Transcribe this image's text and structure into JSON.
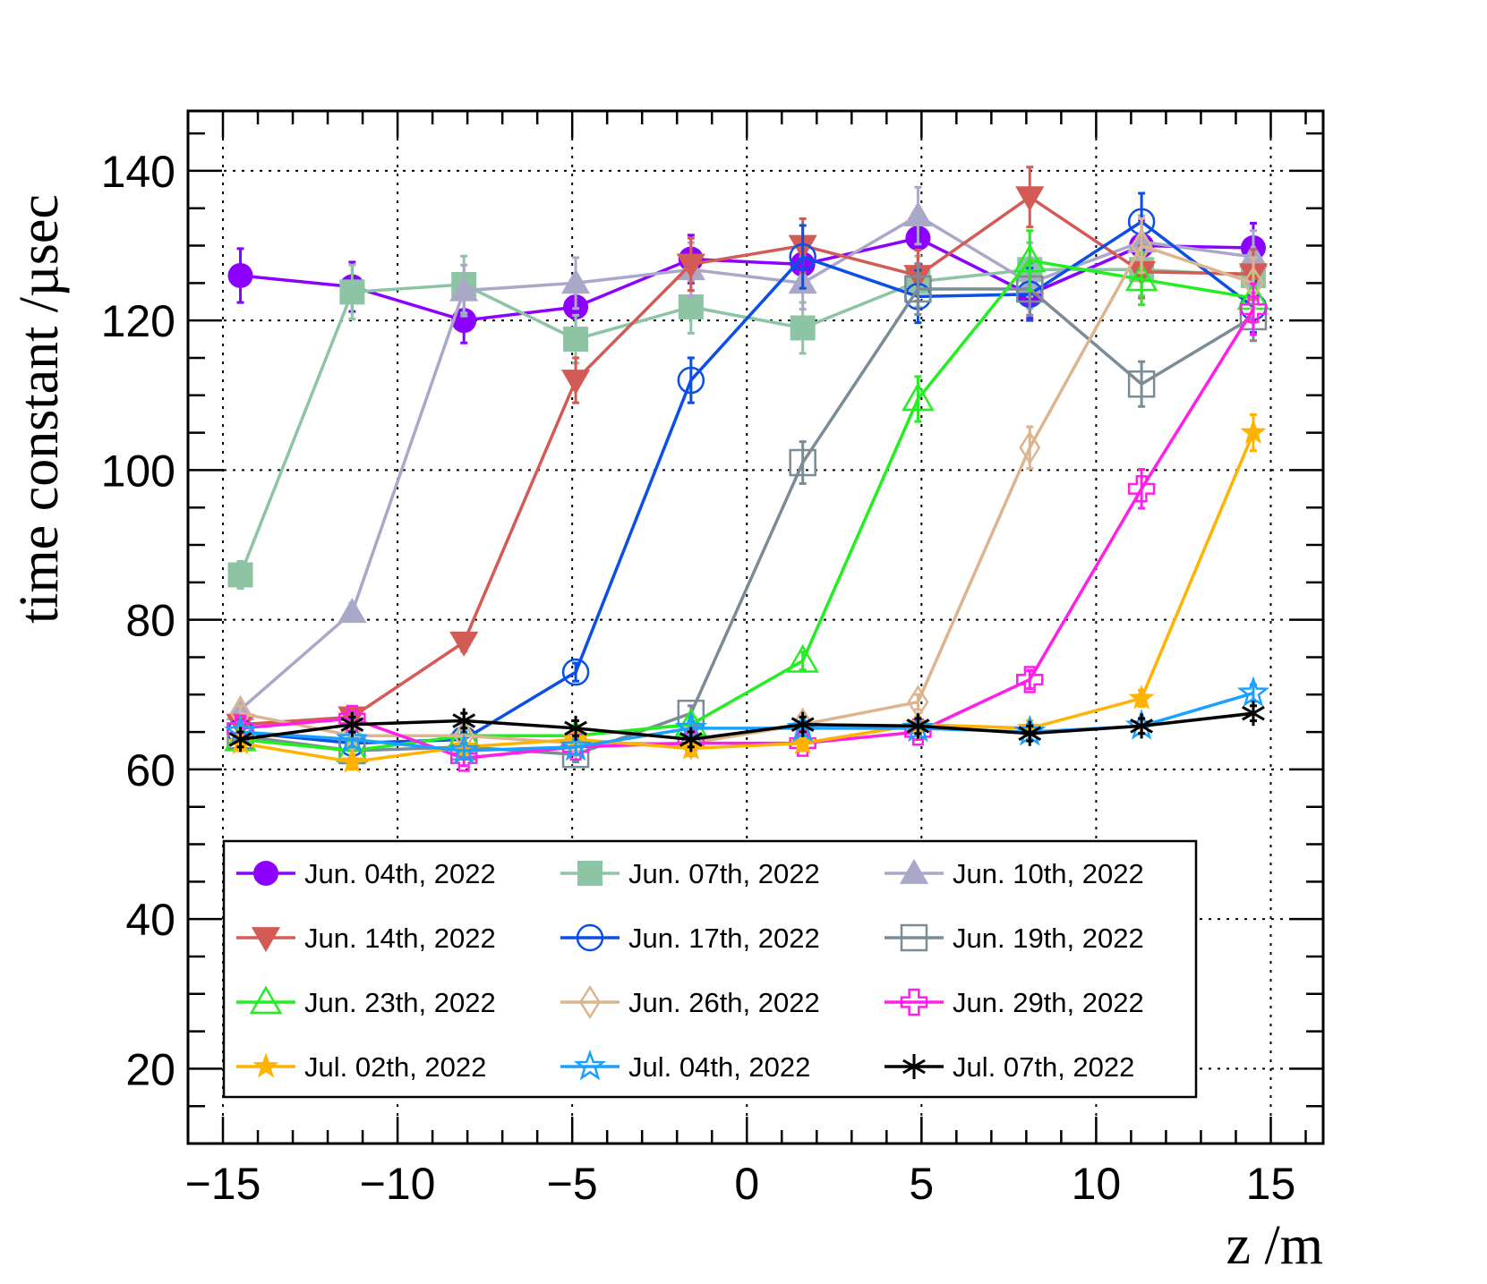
{
  "chart_data": {
    "type": "line",
    "title": "",
    "xlabel": "z /m",
    "ylabel": "time constant /µsec",
    "xlim": [
      -16,
      16.5
    ],
    "ylim": [
      10,
      148
    ],
    "xticks": [
      -15,
      -10,
      -5,
      0,
      5,
      10,
      15
    ],
    "xtick_labels": [
      "−15",
      "−10",
      "−5",
      "0",
      "5",
      "10",
      "15"
    ],
    "yticks": [
      20,
      40,
      60,
      80,
      100,
      120,
      140
    ],
    "ytick_labels": [
      "20",
      "40",
      "60",
      "80",
      "100",
      "120",
      "140"
    ],
    "grid": true,
    "legend_position": "bottom-left",
    "x": [
      -14.5,
      -11.3,
      -8.1,
      -4.9,
      -1.6,
      1.6,
      4.9,
      8.1,
      11.3,
      14.5
    ],
    "series": [
      {
        "name": "Jun. 04th, 2022",
        "color": "#8b00ff",
        "marker": "circle-filled",
        "values": [
          126,
          124.5,
          120,
          121.8,
          128.2,
          127.5,
          131,
          123.5,
          130,
          129.7
        ],
        "errors": [
          3.6,
          3.3,
          3.0,
          3.0,
          3.2,
          3.3,
          3.6,
          3.2,
          3.4,
          3.3
        ]
      },
      {
        "name": "Jun. 07th, 2022",
        "color": "#8cc4a4",
        "marker": "square-filled",
        "values": [
          86,
          123.8,
          124.8,
          117.5,
          121.8,
          119,
          125.2,
          126.8,
          126.8,
          126
        ],
        "errors": [
          1.8,
          3.6,
          3.8,
          3.2,
          3.5,
          3.4,
          3.4,
          3.6,
          3.5,
          3.3
        ]
      },
      {
        "name": "Jun. 10th, 2022",
        "color": "#aaa8c8",
        "marker": "triangle-up-filled",
        "values": [
          68,
          81,
          124,
          125,
          126.8,
          125,
          134,
          125,
          130.5,
          128.5
        ],
        "errors": [
          1.0,
          1.2,
          3.4,
          3.4,
          3.6,
          3.5,
          3.8,
          3.4,
          3.5,
          3.5
        ]
      },
      {
        "name": "Jun. 14th, 2022",
        "color": "#d45a55",
        "marker": "triangle-down-filled",
        "values": [
          66,
          67,
          77,
          112,
          127.5,
          130,
          126,
          136.5,
          126.5,
          126.2
        ],
        "errors": [
          1.0,
          1.0,
          1.2,
          3.0,
          3.5,
          3.6,
          3.4,
          4.0,
          3.5,
          3.3
        ]
      },
      {
        "name": "Jun. 17th, 2022",
        "color": "#0b4fe6",
        "marker": "circle-open",
        "values": [
          65,
          63.5,
          64,
          73,
          112,
          128.5,
          123.2,
          123.5,
          133.2,
          121.8
        ],
        "errors": [
          1.0,
          1.0,
          1.0,
          1.2,
          3.0,
          4.2,
          3.5,
          3.5,
          3.8,
          3.4
        ]
      },
      {
        "name": "Jun. 19th, 2022",
        "color": "#7b8c96",
        "marker": "square-open",
        "values": [
          64.5,
          62.5,
          63,
          62,
          67.5,
          101,
          124.2,
          124.2,
          111.5,
          120.5
        ],
        "errors": [
          1.0,
          1.0,
          1.0,
          1.0,
          1.0,
          2.8,
          3.4,
          3.5,
          3.0,
          3.2
        ]
      },
      {
        "name": "Jun. 23th, 2022",
        "color": "#22ee22",
        "marker": "triangle-up-open",
        "values": [
          64,
          62.5,
          64.5,
          64.5,
          66,
          74.5,
          109.5,
          128,
          125.5,
          123
        ],
        "errors": [
          1.0,
          1.0,
          1.0,
          1.0,
          1.0,
          1.2,
          3.0,
          4.0,
          3.4,
          3.3
        ]
      },
      {
        "name": "Jun. 26th, 2022",
        "color": "#dcb48e",
        "marker": "diamond-open",
        "values": [
          67.5,
          64.5,
          64.5,
          63.5,
          63.5,
          66,
          69,
          103,
          130,
          125
        ],
        "errors": [
          1.0,
          1.0,
          1.0,
          1.0,
          1.0,
          1.0,
          1.0,
          2.8,
          3.6,
          3.4
        ]
      },
      {
        "name": "Jun. 29th, 2022",
        "color": "#ff1fe8",
        "marker": "cross-open",
        "values": [
          65.5,
          66.8,
          61.5,
          63,
          63.5,
          63.5,
          65,
          72,
          97.5,
          121.5
        ],
        "errors": [
          1.0,
          1.0,
          1.0,
          1.0,
          1.0,
          1.0,
          1.0,
          1.2,
          2.6,
          3.4
        ]
      },
      {
        "name": "Jul. 02th, 2022",
        "color": "#ffb300",
        "marker": "star-filled",
        "values": [
          63.5,
          61,
          63,
          64,
          62.8,
          63.5,
          66,
          65.5,
          69.5,
          105
        ],
        "errors": [
          1.0,
          1.0,
          1.0,
          1.0,
          1.0,
          1.0,
          1.0,
          1.0,
          1.1,
          2.4
        ]
      },
      {
        "name": "Jul. 04th, 2022",
        "color": "#1aa0ff",
        "marker": "star-open",
        "values": [
          65,
          64,
          62.5,
          63,
          65.5,
          65.5,
          65.5,
          65,
          65.8,
          70.2
        ],
        "errors": [
          1.0,
          1.0,
          1.0,
          1.0,
          1.0,
          1.0,
          1.0,
          1.0,
          1.0,
          1.1
        ]
      },
      {
        "name": "Jul. 07th, 2022",
        "color": "#000000",
        "marker": "asterisk",
        "values": [
          64,
          66,
          66.5,
          65.5,
          64,
          66,
          65.8,
          64.8,
          65.8,
          67.5
        ],
        "errors": [
          1.0,
          1.0,
          1.0,
          1.0,
          1.0,
          1.0,
          1.0,
          1.0,
          1.0,
          1.0
        ]
      }
    ]
  }
}
